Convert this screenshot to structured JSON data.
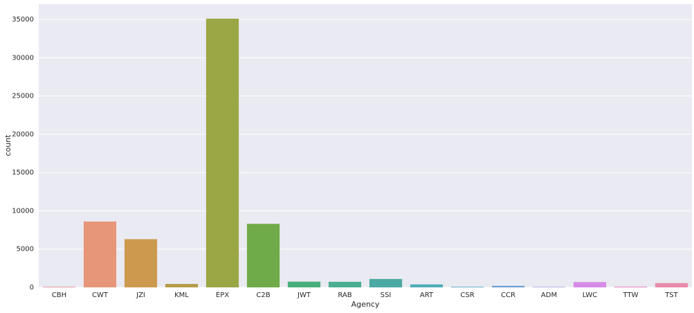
{
  "chart_data": {
    "type": "bar",
    "x_label": "Agency",
    "y_label": "count",
    "categories": [
      "CBH",
      "CWT",
      "JZI",
      "KML",
      "EPX",
      "C2B",
      "JWT",
      "RAB",
      "SSI",
      "ART",
      "CSR",
      "CCR",
      "ADM",
      "LWC",
      "TTW",
      "TST"
    ],
    "values": [
      70,
      8600,
      6300,
      450,
      35100,
      8300,
      750,
      730,
      1100,
      390,
      80,
      200,
      60,
      700,
      100,
      560
    ],
    "colors": [
      "#e8808e",
      "#e8967a",
      "#cc9a4f",
      "#b59c47",
      "#9ba645",
      "#6fab48",
      "#4aae7b",
      "#4bae90",
      "#4ba9a3",
      "#4eadb8",
      "#52a6c4",
      "#6a9fd4",
      "#9d93d8",
      "#d68be6",
      "#e587c8",
      "#e98aab"
    ],
    "ylim": [
      0,
      37000
    ],
    "yticks": [
      0,
      5000,
      10000,
      15000,
      20000,
      25000,
      30000,
      35000
    ],
    "grid": true
  }
}
